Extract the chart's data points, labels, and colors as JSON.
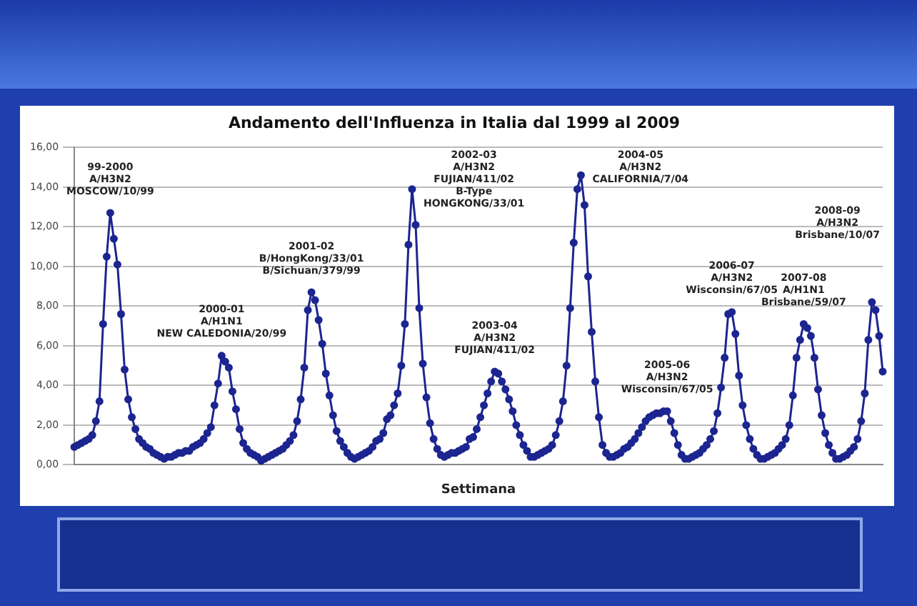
{
  "chart_data": {
    "type": "line",
    "title": "Andamento dell'Influenza in Italia dal 1999 al 2009",
    "xlabel": "Settimana",
    "categories": [
      null,
      null,
      null,
      null,
      null,
      null,
      null,
      null,
      null,
      null,
      null,
      null,
      null,
      null,
      null,
      null,
      null,
      null,
      null,
      null,
      null,
      null,
      null,
      null,
      null,
      null,
      null,
      null,
      null,
      null,
      null,
      null,
      null,
      null,
      null,
      null,
      null,
      null,
      null,
      null,
      null,
      null,
      null,
      null,
      null,
      null,
      null,
      null,
      null,
      null,
      null,
      null,
      null,
      null,
      null,
      null,
      null,
      null,
      null,
      null,
      null,
      null,
      null,
      null,
      null,
      null,
      null,
      null,
      null,
      null,
      null,
      null,
      null,
      null,
      null,
      null,
      null,
      null,
      null,
      null,
      null,
      null,
      null,
      null,
      null,
      null,
      null,
      null,
      null,
      null,
      null,
      null,
      null,
      null,
      null,
      null,
      null,
      null,
      null,
      null,
      null,
      null,
      null,
      null,
      null,
      null,
      null,
      null,
      null,
      null,
      null,
      null,
      null,
      null,
      null,
      null,
      null,
      null,
      null,
      null,
      null,
      null,
      null,
      null,
      null,
      null,
      null,
      null,
      null,
      null,
      null,
      null,
      null,
      null,
      null,
      null,
      null,
      null,
      null,
      null,
      null,
      null,
      null,
      null,
      null,
      null,
      null,
      null,
      null,
      null,
      null,
      null,
      null,
      null,
      null,
      null,
      null,
      null,
      null,
      null,
      null,
      null,
      null,
      null,
      null,
      null,
      null,
      null,
      null,
      null,
      null,
      null,
      null,
      null,
      null,
      null,
      null,
      null,
      null,
      null,
      null,
      null,
      null,
      null,
      null,
      null,
      null,
      null,
      null,
      null,
      null,
      null,
      null,
      null,
      null,
      null,
      null,
      null,
      null,
      null,
      null,
      null,
      null,
      null,
      null,
      null,
      null,
      null,
      null,
      null,
      null,
      null,
      null,
      null,
      null,
      null,
      null,
      null,
      null,
      null,
      null,
      null,
      null,
      null,
      null,
      null
    ],
    "series": [
      {
        "color": "#1c2590",
        "values": [
          0.9,
          1.0,
          1.1,
          1.2,
          1.3,
          1.5,
          2.2,
          3.2,
          7.1,
          10.5,
          12.7,
          11.4,
          10.1,
          7.6,
          4.8,
          3.3,
          2.4,
          1.8,
          1.3,
          1.1,
          0.9,
          0.8,
          0.6,
          0.5,
          0.4,
          0.3,
          0.4,
          0.4,
          0.5,
          0.6,
          0.6,
          0.7,
          0.7,
          0.9,
          1.0,
          1.1,
          1.3,
          1.6,
          1.9,
          3.0,
          4.1,
          5.5,
          5.2,
          4.9,
          3.7,
          2.8,
          1.8,
          1.1,
          0.8,
          0.6,
          0.5,
          0.4,
          0.2,
          0.3,
          0.4,
          0.5,
          0.6,
          0.7,
          0.8,
          1.0,
          1.2,
          1.5,
          2.2,
          3.3,
          4.9,
          7.8,
          8.7,
          8.3,
          7.3,
          6.1,
          4.6,
          3.5,
          2.5,
          1.7,
          1.2,
          0.9,
          0.6,
          0.4,
          0.3,
          0.4,
          0.5,
          0.6,
          0.7,
          0.9,
          1.2,
          1.3,
          1.6,
          2.3,
          2.5,
          3.0,
          3.6,
          5.0,
          7.1,
          11.1,
          13.9,
          12.1,
          7.9,
          5.1,
          3.4,
          2.1,
          1.3,
          0.8,
          0.5,
          0.4,
          0.5,
          0.6,
          0.6,
          0.7,
          0.8,
          0.9,
          1.3,
          1.4,
          1.8,
          2.4,
          3.0,
          3.6,
          4.2,
          4.7,
          4.6,
          4.2,
          3.8,
          3.3,
          2.7,
          2.0,
          1.5,
          1.0,
          0.7,
          0.4,
          0.4,
          0.5,
          0.6,
          0.7,
          0.8,
          1.0,
          1.5,
          2.2,
          3.2,
          5.0,
          7.9,
          11.2,
          13.9,
          14.6,
          13.1,
          9.5,
          6.7,
          4.2,
          2.4,
          1.0,
          0.6,
          0.4,
          0.4,
          0.5,
          0.6,
          0.8,
          0.9,
          1.1,
          1.3,
          1.6,
          1.9,
          2.2,
          2.4,
          2.5,
          2.6,
          2.6,
          2.7,
          2.7,
          2.2,
          1.6,
          1.0,
          0.5,
          0.3,
          0.3,
          0.4,
          0.5,
          0.6,
          0.8,
          1.0,
          1.3,
          1.7,
          2.6,
          3.9,
          5.4,
          7.6,
          7.7,
          6.6,
          4.5,
          3.0,
          2.0,
          1.3,
          0.8,
          0.5,
          0.3,
          0.3,
          0.4,
          0.5,
          0.6,
          0.8,
          1.0,
          1.3,
          2.0,
          3.5,
          5.4,
          6.3,
          7.1,
          6.9,
          6.5,
          5.4,
          3.8,
          2.5,
          1.6,
          1.0,
          0.6,
          0.3,
          0.3,
          0.4,
          0.5,
          0.7,
          0.9,
          1.3,
          2.2,
          3.6,
          6.3,
          8.2,
          7.8,
          6.5,
          4.7
        ]
      }
    ],
    "ylim": [
      0,
      16
    ],
    "yticks": [
      {
        "value": 0,
        "label": "0,00"
      },
      {
        "value": 2,
        "label": "2,00"
      },
      {
        "value": 4,
        "label": "4,00"
      },
      {
        "value": 6,
        "label": "6,00"
      },
      {
        "value": 8,
        "label": "8,00"
      },
      {
        "value": 10,
        "label": "10,00"
      },
      {
        "value": 12,
        "label": "12,00"
      },
      {
        "value": 14,
        "label": "14,00"
      },
      {
        "value": 16,
        "label": "16,00"
      }
    ],
    "grid": "y",
    "legend": false,
    "marker": "circle",
    "line_style": "solid",
    "tick_labels": "y",
    "annotations": [
      "99-2000\nA/H3N2\nMOSCOW/10/99",
      "2000-01\nA/H1N1\nNEW CALEDONIA/20/99",
      "2001-02\nB/HongKong/33/01\nB/Sichuan/379/99",
      "2002-03\nA/H3N2\nFUJIAN/411/02\nB-Type\nHONGKONG/33/01",
      "2003-04\nA/H3N2\nFUJIAN/411/02",
      "2004-05\nA/H3N2\nCALIFORNIA/7/04",
      "2005-06\nA/H3N2\nWisconsin/67/05",
      "2006-07\nA/H3N2\nWisconsin/67/05",
      "2007-08\nA/H1N1\nBrisbane/59/07",
      "2008-09\nA/H3N2\nBrisbane/10/07"
    ]
  }
}
